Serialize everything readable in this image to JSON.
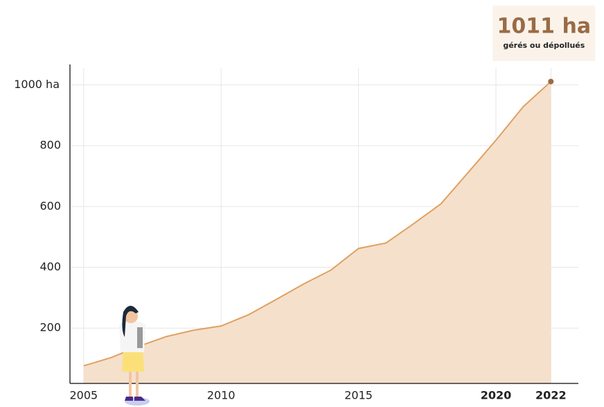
{
  "chart_data": {
    "type": "area",
    "x": [
      2005,
      2006,
      2007,
      2008,
      2009,
      2010,
      2011,
      2012,
      2013,
      2014,
      2015,
      2016,
      2017,
      2018,
      2019,
      2020,
      2021,
      2022
    ],
    "values": [
      76,
      103,
      140,
      172,
      193,
      207,
      244,
      294,
      345,
      391,
      462,
      480,
      543,
      609,
      713,
      818,
      929,
      1011
    ],
    "value_labels": [
      null,
      null,
      null,
      null,
      null,
      null,
      null,
      null,
      null,
      null,
      null,
      null,
      null,
      null,
      null,
      null,
      null,
      "1011 ha"
    ],
    "annotation": "gérés ou dépollués",
    "color": "#e0a060",
    "fill": "#f5e0cc",
    "marker_color": "#9a6b45",
    "xlim": [
      2004.5,
      2023
    ],
    "xticks": [
      2005,
      2010,
      2015,
      2020,
      2022
    ],
    "ylim": [
      18,
      1090
    ],
    "yticks": [
      200,
      400,
      600,
      800,
      {
        "value": 1000,
        "label": "1000 ha"
      }
    ],
    "grid": true
  }
}
